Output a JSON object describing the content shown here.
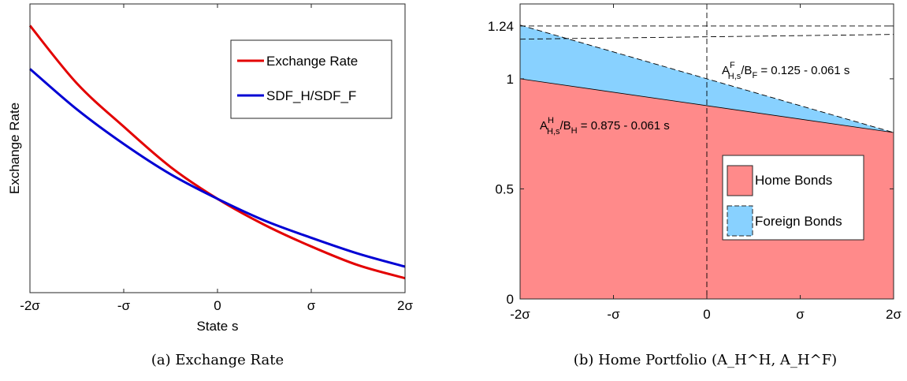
{
  "chart_data": [
    {
      "type": "line",
      "caption": "(a) Exchange Rate",
      "xlabel": "State s",
      "ylabel": "Exchange Rate",
      "xlim": [
        -2,
        2
      ],
      "x_tick_labels": [
        "-2σ",
        "-σ",
        "0",
        "σ",
        "2σ"
      ],
      "x_tick_values": [
        -2,
        -1,
        0,
        1,
        2
      ],
      "ylim": [
        0.35,
        2.35
      ],
      "y_ticks_shown": false,
      "legend": "top-right",
      "series": [
        {
          "name": "Exchange Rate",
          "color": "#e30000",
          "x": [
            -2,
            -1.5,
            -1,
            -0.5,
            0,
            0.5,
            1,
            1.5,
            2
          ],
          "values": [
            2.2,
            1.8,
            1.5,
            1.22,
            1.0,
            0.82,
            0.67,
            0.54,
            0.45
          ]
        },
        {
          "name": "SDF_H/SDF_F",
          "color": "#0000d4",
          "x": [
            -2,
            -1.5,
            -1,
            -0.5,
            0,
            0.5,
            1,
            1.5,
            2
          ],
          "values": [
            1.9,
            1.62,
            1.38,
            1.17,
            1.0,
            0.85,
            0.73,
            0.62,
            0.53
          ]
        }
      ]
    },
    {
      "type": "area",
      "caption": "(b) Home Portfolio",
      "caption_math": "(A_H^H, A_H^F)",
      "xlim": [
        -2,
        2
      ],
      "x_tick_labels": [
        "-2σ",
        "-σ",
        "0",
        "σ",
        "2σ"
      ],
      "x_tick_values": [
        -2,
        -1,
        0,
        1,
        2
      ],
      "ylim": [
        0,
        1.34
      ],
      "y_tick_labels": [
        "0",
        "0.5",
        "1",
        "1.24"
      ],
      "y_tick_values": [
        0,
        0.5,
        1,
        1.24
      ],
      "legend": "center-right",
      "series": [
        {
          "name": "Home Bonds",
          "color": "#ff8a8a",
          "x": [
            -2,
            2
          ],
          "values": [
            1.0,
            0.756
          ]
        },
        {
          "name": "Foreign Bonds",
          "color": "#88d1ff",
          "x": [
            -2,
            2
          ],
          "values": [
            1.244,
            0.756
          ]
        }
      ],
      "reference_lines": {
        "vertical_x": 0,
        "horizontal_y": [
          1.24,
          1.18
        ]
      },
      "annotations": [
        {
          "id": "foreign",
          "base": "A",
          "sup": "F",
          "sub": "H,s",
          "slash": "/B",
          "sub2": "F",
          "rest": " = 0.125 - 0.061 s"
        },
        {
          "id": "home",
          "base": "A",
          "sup": "H",
          "sub": "H,s",
          "slash": "/B",
          "sub2": "H",
          "rest": " = 0.875 - 0.061 s"
        }
      ]
    }
  ]
}
